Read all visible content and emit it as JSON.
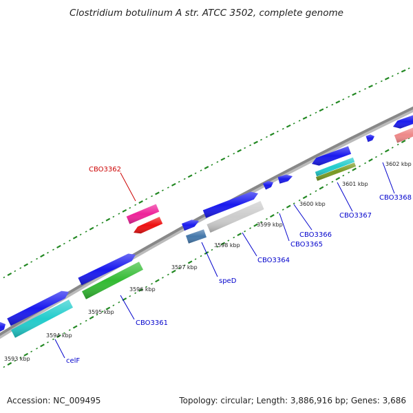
{
  "title": "Clostridium botulinum A str. ATCC 3502, complete genome",
  "accession": "Accession: NC_009495",
  "summary": "Topology: circular; Length: 3,886,916 bp; Genes: 3,686",
  "ticks": [
    "3593 kbp",
    "3594 kbp",
    "3595 kbp",
    "3596 kbp",
    "3597 kbp",
    "3598 kbp",
    "3599 kbp",
    "3600 kbp",
    "3601 kbp",
    "3602 kbp"
  ],
  "genes": [
    {
      "name": "celF",
      "color": "#0000cc"
    },
    {
      "name": "CBO3361",
      "color": "#0000cc"
    },
    {
      "name": "CBO3362",
      "color": "#cc0000"
    },
    {
      "name": "speD",
      "color": "#0000cc"
    },
    {
      "name": "CBO3364",
      "color": "#0000cc"
    },
    {
      "name": "CBO3365",
      "color": "#0000cc"
    },
    {
      "name": "CBO3366",
      "color": "#0000cc"
    },
    {
      "name": "CBO3367",
      "color": "#0000cc"
    },
    {
      "name": "CBO3368",
      "color": "#0000cc"
    }
  ],
  "colors": {
    "backbone": "#888888",
    "dots": "#228822",
    "cds": "#1a1aee",
    "cyan": "#22cccc",
    "green": "#33bb33",
    "magenta": "#ee2299",
    "red": "#ee1111",
    "steelblue": "#4477aa",
    "lightgray": "#cccccc",
    "olive": "#779922",
    "salmon": "#ee8888"
  }
}
